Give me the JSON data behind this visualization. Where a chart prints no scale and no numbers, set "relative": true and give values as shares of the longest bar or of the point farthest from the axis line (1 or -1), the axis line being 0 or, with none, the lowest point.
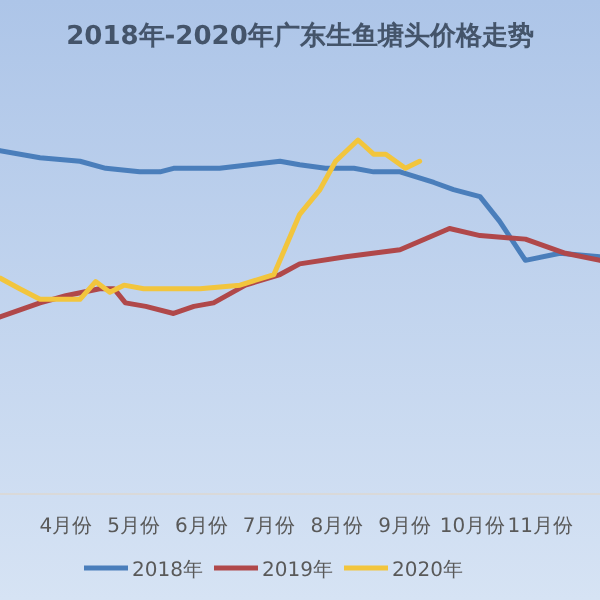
{
  "chart_data": {
    "type": "line",
    "title": "2018年-2020年广东生鱼塘头价格走势",
    "relative": true,
    "legend": "bottom",
    "marker": "none",
    "line_style": "solid",
    "xlim": [
      3.03,
      11.88
    ],
    "xticks": [
      {
        "value": 4,
        "label": "4月份"
      },
      {
        "value": 5,
        "label": "5月份"
      },
      {
        "value": 6,
        "label": "6月份"
      },
      {
        "value": 7,
        "label": "7月份"
      },
      {
        "value": 8,
        "label": "8月份"
      },
      {
        "value": 9,
        "label": "9月份"
      },
      {
        "value": 10,
        "label": "10月份"
      },
      {
        "value": 11,
        "label": "11月份"
      }
    ],
    "series": [
      {
        "name": "2018年",
        "color": "#4a7ebb",
        "x": [
          3.03,
          3.62,
          4.21,
          4.59,
          5.09,
          5.39,
          5.59,
          6.27,
          7.16,
          7.45,
          7.83,
          8.25,
          8.54,
          8.93,
          9.43,
          9.72,
          10.11,
          10.4,
          10.78,
          11.29,
          11.88
        ],
        "values": [
          0.97,
          0.95,
          0.94,
          0.92,
          0.91,
          0.91,
          0.92,
          0.92,
          0.94,
          0.93,
          0.92,
          0.92,
          0.91,
          0.91,
          0.88,
          0.86,
          0.84,
          0.77,
          0.66,
          0.68,
          0.67
        ]
      },
      {
        "name": "2019年",
        "color": "#b0484a",
        "x": [
          3.03,
          3.62,
          4.0,
          4.5,
          4.71,
          4.88,
          5.18,
          5.59,
          5.89,
          6.18,
          6.65,
          7.16,
          7.45,
          8.13,
          8.93,
          9.66,
          10.11,
          10.78,
          11.37,
          11.88
        ],
        "values": [
          0.5,
          0.54,
          0.56,
          0.58,
          0.58,
          0.54,
          0.53,
          0.51,
          0.53,
          0.54,
          0.59,
          0.62,
          0.65,
          0.67,
          0.69,
          0.75,
          0.73,
          0.72,
          0.68,
          0.66
        ]
      },
      {
        "name": "2020年",
        "color": "#f2c53d",
        "x": [
          3.03,
          3.32,
          3.62,
          4.21,
          4.44,
          4.65,
          4.86,
          5.15,
          5.98,
          6.57,
          7.07,
          7.36,
          7.45,
          7.75,
          7.98,
          8.31,
          8.54,
          8.72,
          9.01,
          9.22
        ],
        "values": [
          0.61,
          0.58,
          0.55,
          0.55,
          0.6,
          0.57,
          0.59,
          0.58,
          0.58,
          0.59,
          0.62,
          0.75,
          0.79,
          0.86,
          0.94,
          1.0,
          0.96,
          0.96,
          0.92,
          0.94
        ]
      }
    ]
  }
}
